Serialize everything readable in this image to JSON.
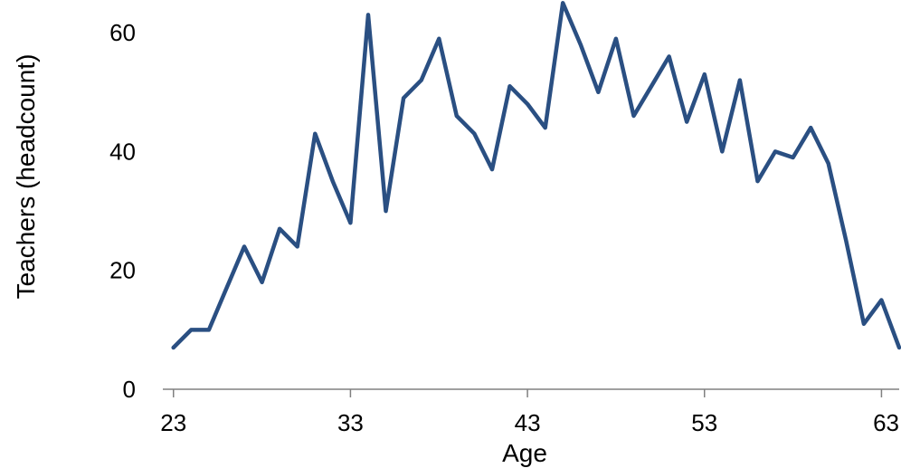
{
  "chart_data": {
    "type": "line",
    "title": "",
    "xlabel": "Age",
    "ylabel": "Teachers (headcount)",
    "x": [
      23,
      24,
      25,
      26,
      27,
      28,
      29,
      30,
      31,
      32,
      33,
      34,
      35,
      36,
      37,
      38,
      39,
      40,
      41,
      42,
      43,
      44,
      45,
      46,
      47,
      48,
      49,
      50,
      51,
      52,
      53,
      54,
      55,
      56,
      57,
      58,
      59,
      60,
      61,
      62,
      63,
      64
    ],
    "series": [
      {
        "values": [
          7,
          10,
          10,
          17,
          24,
          18,
          27,
          24,
          43,
          35,
          28,
          63,
          30,
          49,
          52,
          59,
          46,
          43,
          37,
          51,
          48,
          44,
          65,
          58,
          50,
          59,
          46,
          51,
          56,
          45,
          53,
          40,
          52,
          35,
          40,
          39,
          44,
          38,
          25,
          11,
          15,
          7
        ],
        "color": "#2a4f82"
      }
    ],
    "x_ticks": [
      23,
      33,
      43,
      53,
      63
    ],
    "y_ticks": [
      0,
      20,
      40,
      60
    ],
    "xlim": [
      22.4,
      64
    ],
    "ylim": [
      0,
      65.5
    ],
    "grid": false,
    "legend": "none"
  }
}
